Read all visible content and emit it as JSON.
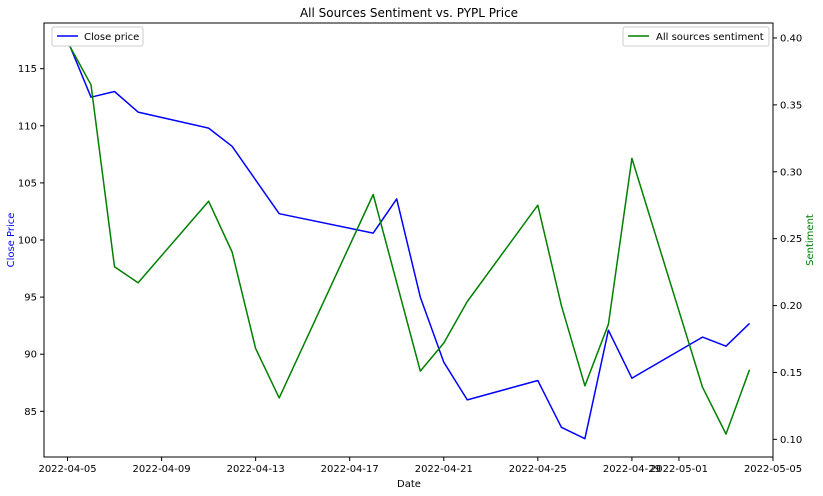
{
  "chart_data": {
    "type": "line",
    "title": "All Sources Sentiment vs. PYPL Price",
    "xlabel": "Date",
    "y_left_label": "Close Price",
    "y_right_label": "Sentiment",
    "x_ticks": [
      "2022-04-05",
      "2022-04-09",
      "2022-04-13",
      "2022-04-17",
      "2022-04-21",
      "2022-04-25",
      "2022-04-29",
      "2022-05-01",
      "2022-05-05"
    ],
    "x_range": [
      "2022-04-04",
      "2022-05-05"
    ],
    "y_left_ticks": [
      85,
      90,
      95,
      100,
      105,
      110,
      115
    ],
    "y_left_range": [
      81.0,
      119.0
    ],
    "y_right_ticks": [
      "0.10",
      "0.15",
      "0.20",
      "0.25",
      "0.30",
      "0.35",
      "0.40"
    ],
    "y_right_range": [
      0.0868,
      0.4112
    ],
    "grid": false,
    "legend_left": {
      "placement": "top-left",
      "label": "Close price"
    },
    "legend_right": {
      "placement": "top-right",
      "label": "All sources sentiment"
    },
    "colors": {
      "price": "#0000ff",
      "sentiment": "#008000",
      "left_axis_label": "#0000ff",
      "right_axis_label": "#008000"
    },
    "series": [
      {
        "name": "Close price",
        "axis": "left",
        "x": [
          "2022-04-05",
          "2022-04-06",
          "2022-04-07",
          "2022-04-08",
          "2022-04-11",
          "2022-04-12",
          "2022-04-14",
          "2022-04-18",
          "2022-04-19",
          "2022-04-20",
          "2022-04-21",
          "2022-04-22",
          "2022-04-25",
          "2022-04-26",
          "2022-04-27",
          "2022-04-28",
          "2022-04-29",
          "2022-05-02",
          "2022-05-03",
          "2022-05-04"
        ],
        "values": [
          117.5,
          112.5,
          113.0,
          111.2,
          109.8,
          108.2,
          102.3,
          100.6,
          103.6,
          95.0,
          89.3,
          86.0,
          87.7,
          83.6,
          82.6,
          92.1,
          87.9,
          91.5,
          90.7,
          92.7
        ]
      },
      {
        "name": "All sources sentiment",
        "axis": "right",
        "x": [
          "2022-04-05",
          "2022-04-06",
          "2022-04-07",
          "2022-04-08",
          "2022-04-11",
          "2022-04-12",
          "2022-04-13",
          "2022-04-14",
          "2022-04-18",
          "2022-04-20",
          "2022-04-21",
          "2022-04-22",
          "2022-04-25",
          "2022-04-26",
          "2022-04-27",
          "2022-04-28",
          "2022-04-29",
          "2022-05-02",
          "2022-05-03",
          "2022-05-04"
        ],
        "values": [
          0.397,
          0.365,
          0.229,
          0.217,
          0.278,
          0.24,
          0.168,
          0.131,
          0.283,
          0.151,
          0.172,
          0.203,
          0.275,
          0.2,
          0.14,
          0.186,
          0.31,
          0.139,
          0.104,
          0.152
        ]
      }
    ]
  }
}
